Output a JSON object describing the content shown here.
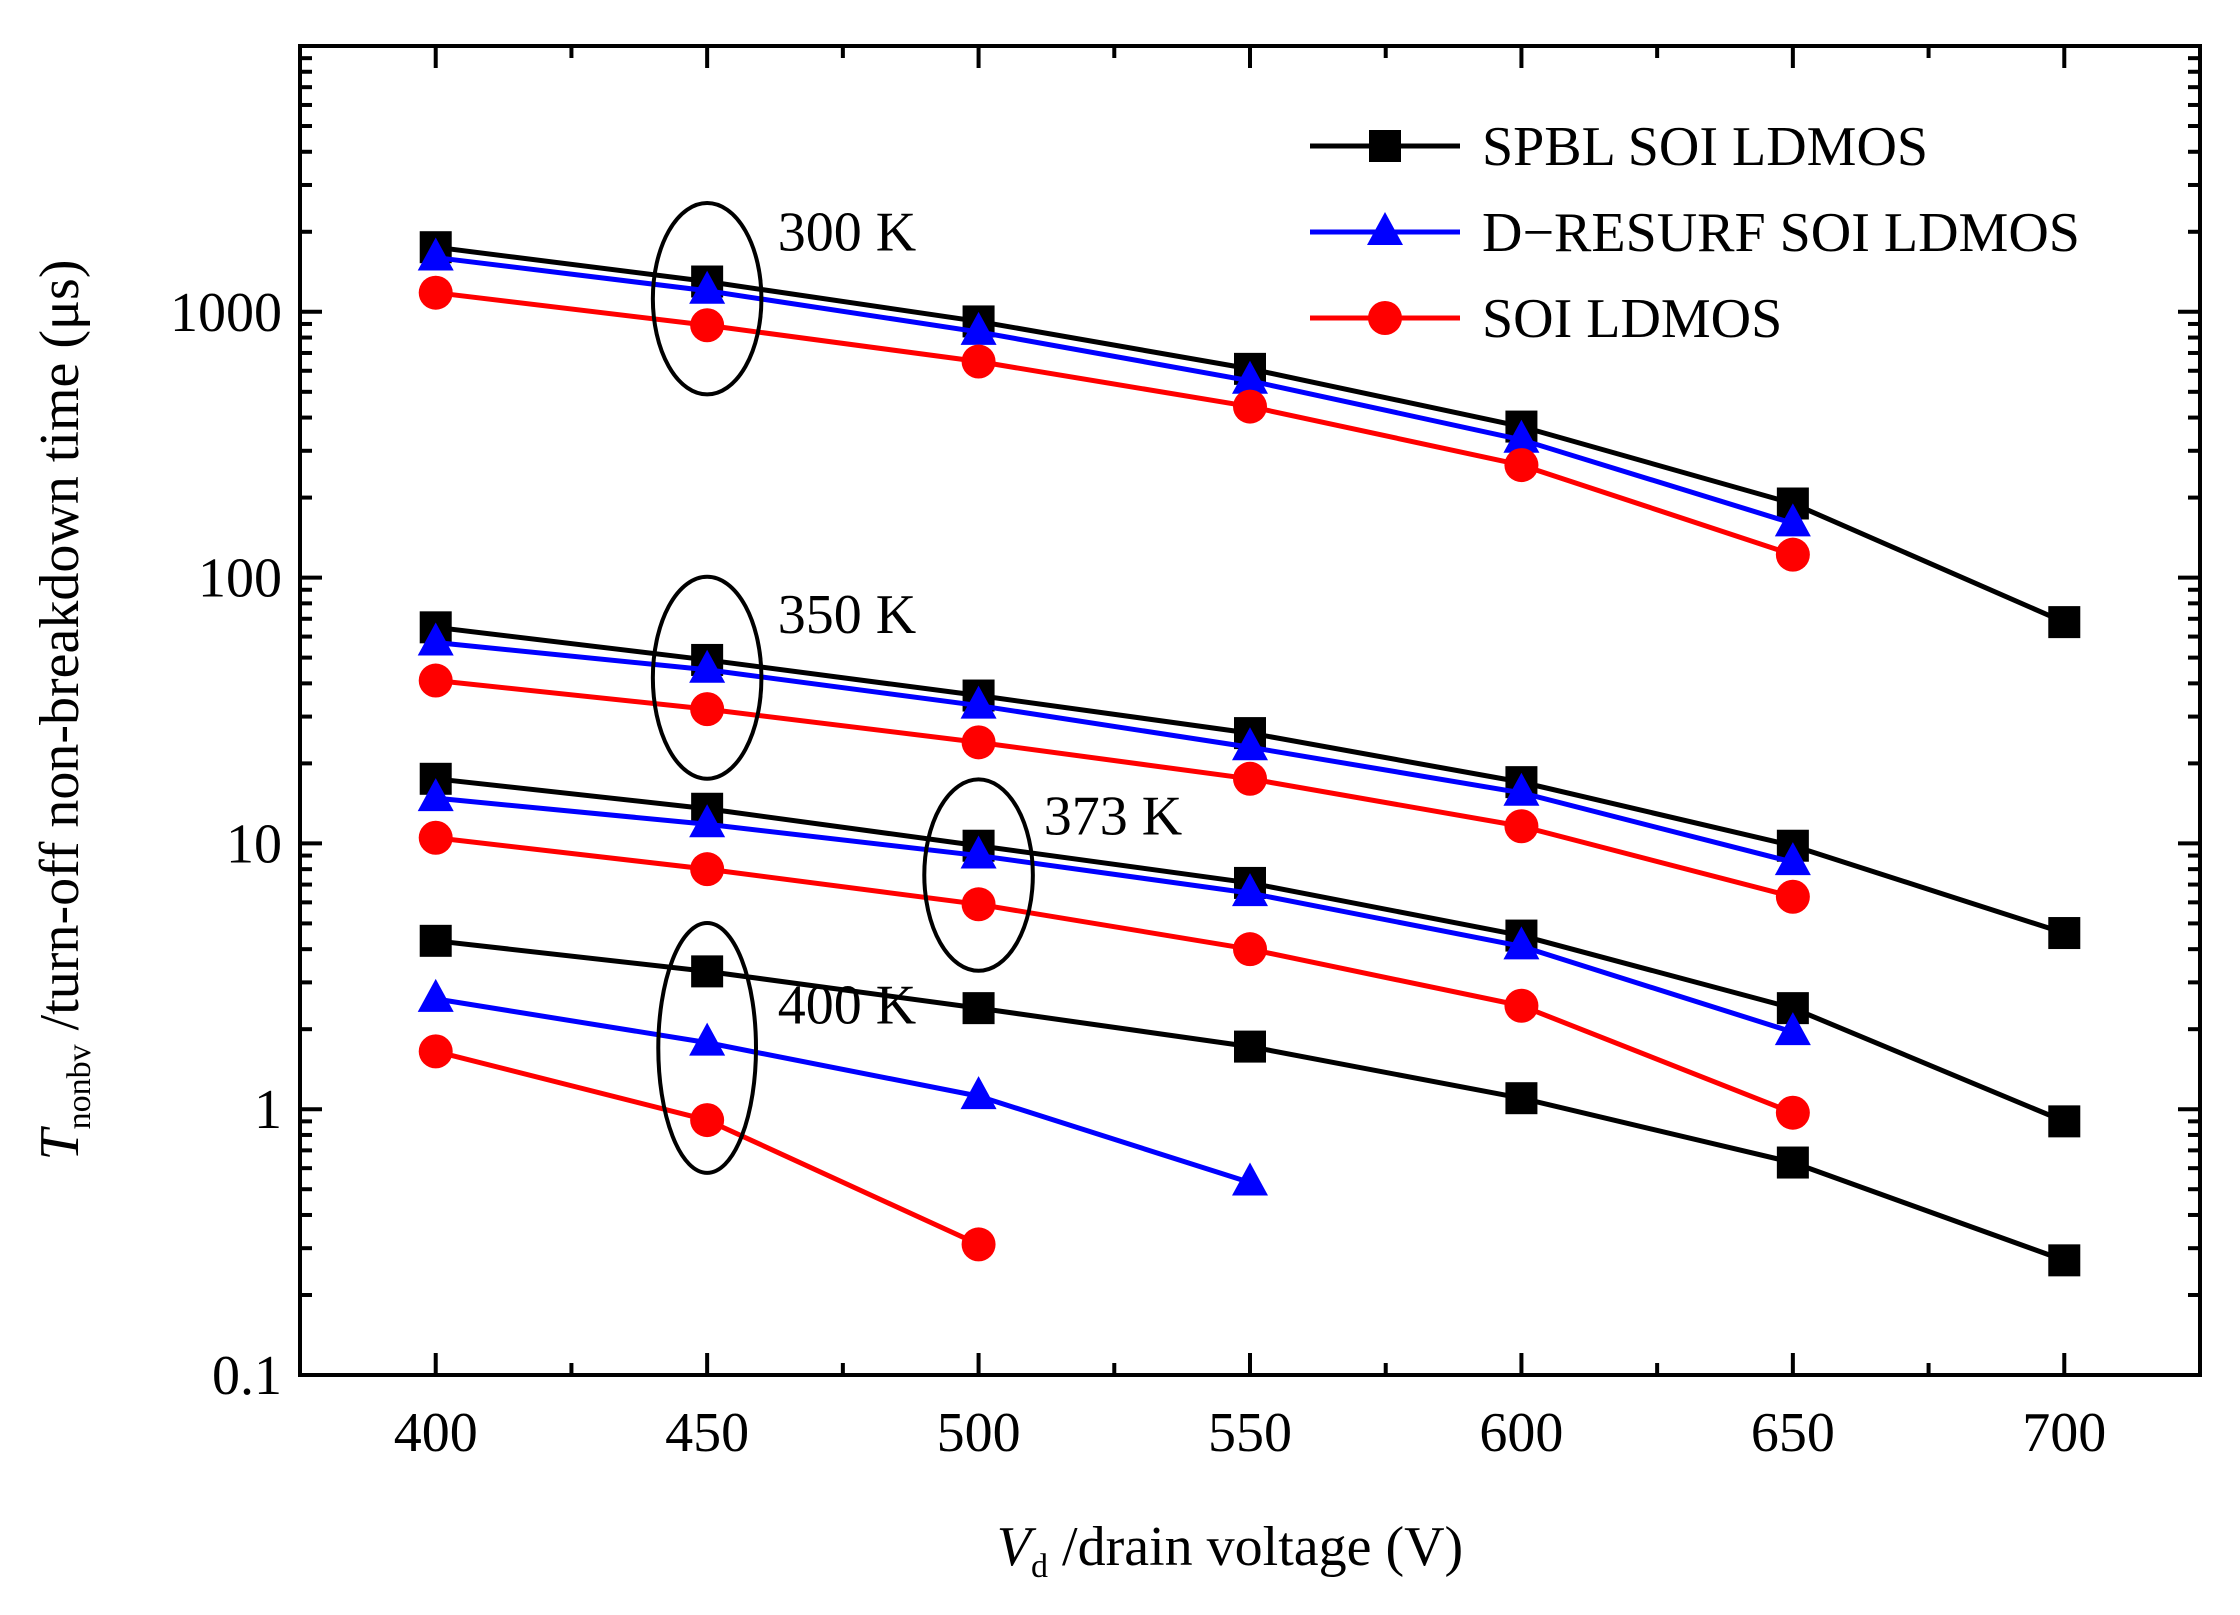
{
  "chart_data": {
    "type": "line",
    "y_scale": "log",
    "xlabel": {
      "var": "V",
      "sub": "d",
      "text": " /drain voltage (V)"
    },
    "ylabel": {
      "var": "T",
      "sub": "nonbv",
      "text": " /turn-off non-breakdown time (μs)"
    },
    "xlim": [
      375,
      725
    ],
    "ylim": [
      0.1,
      10000
    ],
    "x_ticks": [
      400,
      450,
      500,
      550,
      600,
      650,
      700
    ],
    "x_tick_labels": [
      "400",
      "450",
      "500",
      "550",
      "600",
      "650",
      "700"
    ],
    "y_ticks": [
      0.1,
      1,
      10,
      100,
      1000
    ],
    "y_tick_labels": [
      "0.1",
      "1",
      "10",
      "100",
      "1000"
    ],
    "legend": {
      "position": "top-right",
      "entries": [
        {
          "label": "SPBL SOI LDMOS",
          "color": "#000000",
          "marker": "square"
        },
        {
          "label": "D−RESURF SOI LDMOS",
          "color": "#0000ff",
          "marker": "triangle"
        },
        {
          "label": "SOI LDMOS",
          "color": "#ff0000",
          "marker": "circle"
        }
      ]
    },
    "series": [
      {
        "name": "SPBL SOI LDMOS",
        "temperature": "300 K",
        "color": "#000000",
        "marker": "square",
        "x": [
          400,
          450,
          500,
          550,
          600,
          650,
          700
        ],
        "values": [
          1750,
          1300,
          920,
          610,
          370,
          190,
          68
        ]
      },
      {
        "name": "D−RESURF SOI LDMOS",
        "temperature": "300 K",
        "color": "#0000ff",
        "marker": "triangle",
        "x": [
          400,
          450,
          500,
          550,
          600,
          650
        ],
        "values": [
          1600,
          1200,
          840,
          550,
          330,
          160
        ]
      },
      {
        "name": "SOI LDMOS",
        "temperature": "300 K",
        "color": "#ff0000",
        "marker": "circle",
        "x": [
          400,
          450,
          500,
          550,
          600,
          650
        ],
        "values": [
          1180,
          890,
          650,
          440,
          265,
          122
        ]
      },
      {
        "name": "SPBL SOI LDMOS",
        "temperature": "350 K",
        "color": "#000000",
        "marker": "square",
        "x": [
          400,
          450,
          500,
          550,
          600,
          650,
          700
        ],
        "values": [
          65,
          49,
          36,
          26,
          17,
          9.8,
          4.6
        ]
      },
      {
        "name": "D−RESURF SOI LDMOS",
        "temperature": "350 K",
        "color": "#0000ff",
        "marker": "triangle",
        "x": [
          400,
          450,
          500,
          550,
          600,
          650
        ],
        "values": [
          57,
          45,
          33,
          23,
          15.5,
          8.5
        ]
      },
      {
        "name": "SOI LDMOS",
        "temperature": "350 K",
        "color": "#ff0000",
        "marker": "circle",
        "x": [
          400,
          450,
          500,
          550,
          600,
          650
        ],
        "values": [
          41,
          32,
          24,
          17.5,
          11.6,
          6.3
        ]
      },
      {
        "name": "SPBL SOI LDMOS",
        "temperature": "373 K",
        "color": "#000000",
        "marker": "square",
        "x": [
          400,
          450,
          500,
          550,
          600,
          650,
          700
        ],
        "values": [
          17.5,
          13.5,
          9.8,
          7.1,
          4.5,
          2.4,
          0.9
        ]
      },
      {
        "name": "D−RESURF SOI LDMOS",
        "temperature": "373 K",
        "color": "#0000ff",
        "marker": "triangle",
        "x": [
          400,
          450,
          500,
          550,
          600,
          650
        ],
        "values": [
          14.8,
          11.8,
          9.0,
          6.5,
          4.1,
          1.95
        ]
      },
      {
        "name": "SOI LDMOS",
        "temperature": "373 K",
        "color": "#ff0000",
        "marker": "circle",
        "x": [
          400,
          450,
          500,
          550,
          600,
          650
        ],
        "values": [
          10.5,
          8.0,
          5.9,
          4.0,
          2.45,
          0.97
        ]
      },
      {
        "name": "SPBL SOI LDMOS",
        "temperature": "400 K",
        "color": "#000000",
        "marker": "square",
        "x": [
          400,
          450,
          500,
          550,
          600,
          650,
          700
        ],
        "values": [
          4.3,
          3.3,
          2.4,
          1.72,
          1.1,
          0.63,
          0.27
        ]
      },
      {
        "name": "D−RESURF SOI LDMOS",
        "temperature": "400 K",
        "color": "#0000ff",
        "marker": "triangle",
        "x": [
          400,
          450,
          500,
          550
        ],
        "values": [
          2.6,
          1.78,
          1.12,
          0.53
        ]
      },
      {
        "name": "SOI LDMOS",
        "temperature": "400 K",
        "color": "#ff0000",
        "marker": "circle",
        "x": [
          400,
          450,
          500
        ],
        "values": [
          1.65,
          0.91,
          0.31
        ]
      }
    ],
    "annotations": [
      {
        "text": "300 K",
        "x": 463,
        "y": 1700,
        "ellipse": {
          "cx": 450,
          "cy": 1120,
          "rx": 10,
          "logr": 0.36
        }
      },
      {
        "text": "350 K",
        "x": 463,
        "y": 62,
        "ellipse": {
          "cx": 450,
          "cy": 42,
          "rx": 10,
          "logr": 0.38
        }
      },
      {
        "text": "373 K",
        "x": 512,
        "y": 10.8,
        "ellipse": {
          "cx": 500,
          "cy": 7.6,
          "rx": 10,
          "logr": 0.36
        }
      },
      {
        "text": "400 K",
        "x": 463,
        "y": 2.1,
        "ellipse": {
          "cx": 450,
          "cy": 1.7,
          "rx": 9,
          "logr": 0.47
        }
      }
    ]
  }
}
